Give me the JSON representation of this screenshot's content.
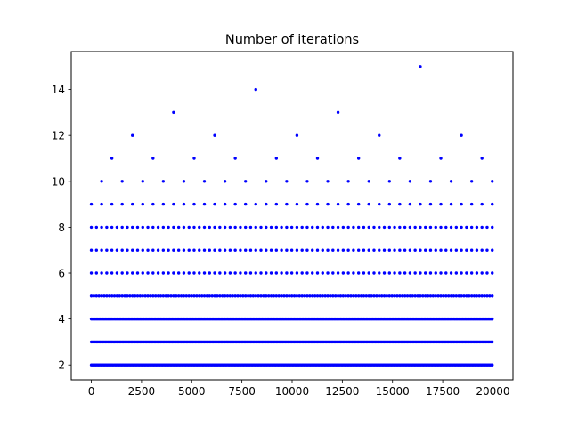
{
  "chart_data": {
    "type": "scatter",
    "title": "Number of iterations",
    "xlabel": "",
    "ylabel": "",
    "xlim": [
      -1000,
      21000
    ],
    "ylim": [
      1.35,
      15.65
    ],
    "x_ticks": [
      0,
      2500,
      5000,
      7500,
      10000,
      12500,
      15000,
      17500,
      20000
    ],
    "x_tick_labels": [
      "0",
      "2500",
      "5000",
      "7500",
      "10000",
      "12500",
      "15000",
      "17500",
      "20000"
    ],
    "y_ticks": [
      2,
      4,
      6,
      8,
      10,
      12,
      14
    ],
    "y_tick_labels": [
      "2",
      "4",
      "6",
      "8",
      "10",
      "12",
      "14"
    ],
    "grid": false,
    "marker_color": "#0000ff",
    "x_range": [
      0,
      20000
    ],
    "levels": [
      {
        "y": 2,
        "x_step": 64
      },
      {
        "y": 3,
        "x_step": 64
      },
      {
        "y": 4,
        "x_step": 64
      },
      {
        "y": 5,
        "x_step": 128
      },
      {
        "y": 6,
        "x_step": 256
      },
      {
        "y": 7,
        "x_step": 256
      },
      {
        "y": 8,
        "x_step": 256
      },
      {
        "y": 9,
        "x_step": 512
      },
      {
        "y": 10,
        "x_values": [
          512,
          1536,
          2560,
          3584,
          4608,
          5632,
          6656,
          7680,
          8704,
          9728,
          10752,
          11776,
          12800,
          13824,
          14848,
          15872,
          16896,
          17920,
          18944,
          19968
        ]
      },
      {
        "y": 11,
        "x_values": [
          1024,
          3072,
          5120,
          7168,
          9216,
          11264,
          13312,
          15360,
          17408,
          19456
        ]
      },
      {
        "y": 12,
        "x_values": [
          2048,
          6144,
          10240,
          14336,
          18432
        ]
      },
      {
        "y": 13,
        "x_values": [
          4096,
          12288
        ]
      },
      {
        "y": 14,
        "x_values": [
          8192
        ]
      },
      {
        "y": 15,
        "x_values": [
          16384
        ]
      }
    ]
  }
}
